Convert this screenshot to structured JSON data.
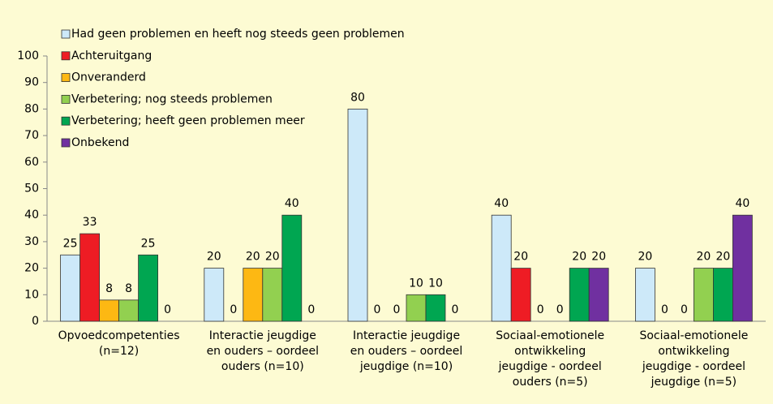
{
  "chart_data": {
    "type": "bar",
    "categories": [
      "Opvoedcompetenties\n(n=12)",
      "Interactie jeugdige\nen ouders – oordeel\nouders (n=10)",
      "Interactie jeugdige\nen ouders – oordeel\njeugdige (n=10)",
      "Sociaal-emotionele\nontwikkeling\njeugdige - oordeel\nouders (n=5)",
      "Sociaal-emotionele\nontwikkeling\njeugdige - oordeel\njeugdige (n=5)"
    ],
    "series": [
      {
        "name": "Had geen problemen en heeft nog steeds geen problemen",
        "color": "#cde9f9",
        "values": [
          25,
          20,
          80,
          40,
          20
        ]
      },
      {
        "name": "Achteruitgang",
        "color": "#ee1c24",
        "values": [
          33,
          0,
          0,
          20,
          0
        ]
      },
      {
        "name": "Onveranderd",
        "color": "#fdb813",
        "values": [
          8,
          20,
          0,
          0,
          0
        ]
      },
      {
        "name": "Verbetering; nog steeds problemen",
        "color": "#92d050",
        "values": [
          8,
          20,
          10,
          0,
          20
        ]
      },
      {
        "name": "Verbetering; heeft geen problemen meer",
        "color": "#00a651",
        "values": [
          25,
          40,
          10,
          20,
          20
        ]
      },
      {
        "name": "Onbekend",
        "color": "#7030a0",
        "values": [
          0,
          0,
          0,
          20,
          40
        ]
      }
    ],
    "ylim": [
      0,
      100
    ],
    "yticks": [
      0,
      10,
      20,
      30,
      40,
      50,
      60,
      70,
      80,
      90,
      100
    ],
    "grid": false,
    "legend": "top-left"
  }
}
